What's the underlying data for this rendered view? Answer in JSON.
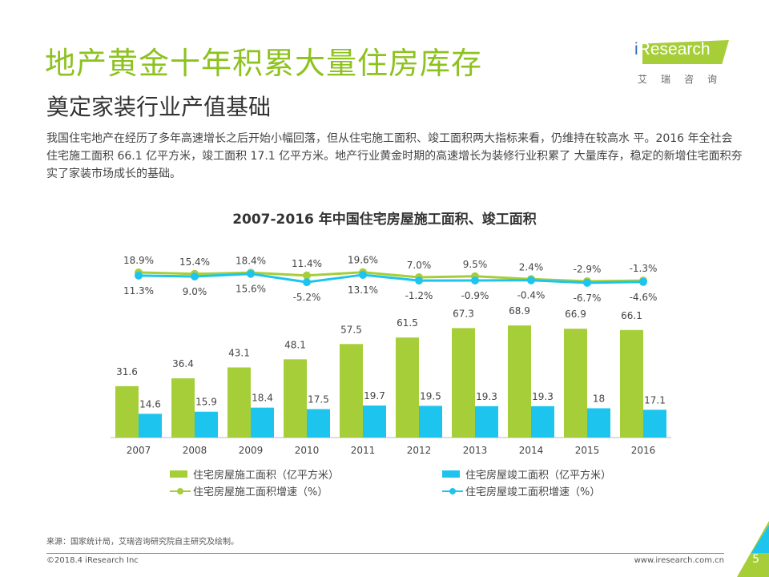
{
  "header": {
    "title": "地产黄金十年积累大量住房库存",
    "subtitle": "奠定家装行业产值基础",
    "description": "我国住宅地产在经历了多年高速增长之后开始小幅回落，但从住宅施工面积、竣工面积两大指标来看，仍维持在较高水 平。2016 年全社会住宅施工面积 66.1 亿平方米，竣工面积 17.1 亿平方米。地产行业黄金时期的高速增长为装修行业积累了 大量库存，稳定的新增住宅面积夯实了家装市场成长的基础。"
  },
  "logo": {
    "brand": "iResearch",
    "brand_cn": "艾瑞咨询"
  },
  "colors": {
    "green": "#A6CE39",
    "blue": "#1DC5EE",
    "title_green": "#8DC21F"
  },
  "chart_data": {
    "type": "bar+line",
    "title": "2007-2016 年中国住宅房屋施工面积、竣工面积",
    "categories": [
      "2007",
      "2008",
      "2009",
      "2010",
      "2011",
      "2012",
      "2013",
      "2014",
      "2015",
      "2016"
    ],
    "series": [
      {
        "name": "住宅房屋施工面积（亿平方米）",
        "type": "bar",
        "color": "#A6CE39",
        "values": [
          31.6,
          36.4,
          43.1,
          48.1,
          57.5,
          61.5,
          67.3,
          68.9,
          66.9,
          66.1
        ]
      },
      {
        "name": "住宅房屋竣工面积（亿平方米）",
        "type": "bar",
        "color": "#1DC5EE",
        "values": [
          14.6,
          15.9,
          18.4,
          17.5,
          19.7,
          19.5,
          19.3,
          19.3,
          18.0,
          17.1
        ]
      },
      {
        "name": "住宅房屋施工面积增速（%）",
        "type": "line",
        "color": "#A6CE39",
        "values": [
          18.9,
          15.4,
          18.4,
          11.4,
          19.6,
          7.0,
          9.5,
          2.4,
          -2.9,
          -1.3
        ],
        "labels": [
          "18.9%",
          "15.4%",
          "18.4%",
          "11.4%",
          "19.6%",
          "7.0%",
          "9.5%",
          "2.4%",
          "-2.9%",
          "-1.3%"
        ]
      },
      {
        "name": "住宅房屋竣工面积增速（%）",
        "type": "line",
        "color": "#1DC5EE",
        "values": [
          11.3,
          9.0,
          15.6,
          -5.2,
          13.1,
          -1.2,
          -0.9,
          -0.4,
          -6.7,
          -4.6
        ],
        "labels": [
          "11.3%",
          "9.0%",
          "15.6%",
          "-5.2%",
          "13.1%",
          "-1.2%",
          "-0.9%",
          "-0.4%",
          "-6.7%",
          "-4.6%"
        ]
      }
    ],
    "legend_position": "bottom",
    "grid": false
  },
  "footer": {
    "source": "来源：国家统计局，艾瑞咨询研究院自主研究及绘制。",
    "copyright": "©2018.4 iResearch Inc",
    "url": "www.iresearch.com.cn",
    "page": "5"
  }
}
